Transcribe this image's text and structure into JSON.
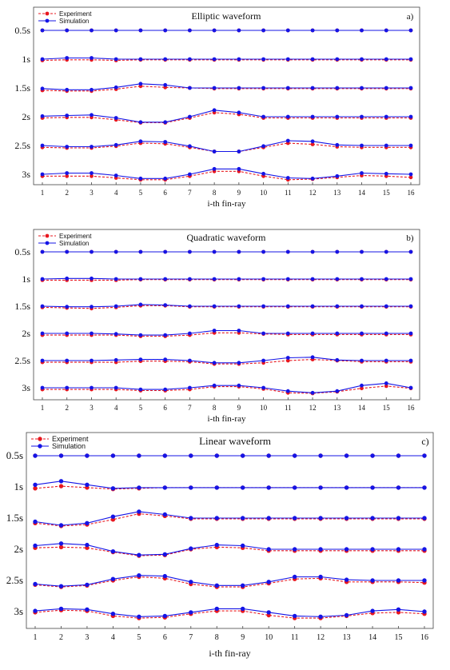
{
  "chart_data": [
    {
      "type": "line",
      "title": "Elliptic waveform",
      "panel_label": "a)",
      "xlabel": "i-th fin-ray",
      "x": [
        1,
        2,
        3,
        4,
        5,
        6,
        7,
        8,
        9,
        10,
        11,
        12,
        13,
        14,
        15,
        16
      ],
      "row_labels": [
        "0.5s",
        "1s",
        "1.5s",
        "2s",
        "2.5s",
        "3s"
      ],
      "legend": [
        "Experiment",
        "Simulation"
      ],
      "legend_position": "top-left",
      "colors": {
        "experiment": "#e8171f",
        "simulation": "#1414e6"
      },
      "grid": false,
      "series": [
        {
          "name": "Experiment",
          "rows": [
            [
              0,
              0,
              0,
              0,
              0,
              0,
              0,
              0,
              0,
              0,
              0,
              0,
              0,
              0,
              0,
              0
            ],
            [
              -0.2,
              -0.1,
              -0.1,
              -0.2,
              -0.1,
              -0.1,
              -0.1,
              -0.1,
              -0.1,
              -0.1,
              -0.1,
              -0.1,
              -0.1,
              -0.1,
              -0.1,
              -0.1
            ],
            [
              -0.4,
              -0.5,
              -0.5,
              -0.2,
              0.3,
              0.1,
              0,
              -0.1,
              -0.1,
              -0.1,
              -0.1,
              -0.1,
              -0.1,
              -0.1,
              -0.1,
              -0.1
            ],
            [
              -0.2,
              -0.1,
              -0.1,
              -0.5,
              -1,
              -1,
              -0.2,
              0.7,
              0.4,
              -0.2,
              -0.2,
              -0.2,
              -0.2,
              -0.2,
              -0.2,
              -0.2
            ],
            [
              -0.3,
              -0.4,
              -0.4,
              -0.1,
              0.4,
              0.3,
              -0.3,
              -1,
              -1,
              -0.3,
              0.4,
              0.2,
              -0.2,
              -0.3,
              -0.3,
              -0.3
            ],
            [
              -0.3,
              -0.3,
              -0.3,
              -0.6,
              -0.9,
              -0.9,
              -0.3,
              0.5,
              0.5,
              -0.3,
              -0.9,
              -0.8,
              -0.5,
              -0.2,
              -0.3,
              -0.5
            ]
          ]
        },
        {
          "name": "Simulation",
          "rows": [
            [
              0,
              0,
              0,
              0,
              0,
              0,
              0,
              0,
              0,
              0,
              0,
              0,
              0,
              0,
              0,
              0
            ],
            [
              0,
              0.2,
              0.2,
              0,
              0,
              0,
              0,
              0,
              0,
              0,
              0,
              0,
              0,
              0,
              0,
              0
            ],
            [
              -0.1,
              -0.3,
              -0.3,
              0.1,
              0.7,
              0.5,
              0,
              0,
              0,
              0,
              0,
              0,
              0,
              0,
              0,
              0
            ],
            [
              0.1,
              0.2,
              0.3,
              -0.2,
              -0.9,
              -0.9,
              0,
              1.1,
              0.7,
              0,
              0,
              0,
              0,
              0,
              0,
              0
            ],
            [
              0,
              -0.2,
              -0.2,
              0.1,
              0.7,
              0.6,
              -0.1,
              -1,
              -1,
              -0.1,
              0.8,
              0.7,
              0.1,
              0,
              0,
              0
            ],
            [
              0,
              0.2,
              0.2,
              -0.2,
              -0.7,
              -0.7,
              0,
              0.9,
              0.9,
              0.1,
              -0.6,
              -0.7,
              -0.3,
              0.2,
              0.1,
              0
            ]
          ]
        }
      ]
    },
    {
      "type": "line",
      "title": "Quadratic waveform",
      "panel_label": "b)",
      "xlabel": "i-th fin-ray",
      "x": [
        1,
        2,
        3,
        4,
        5,
        6,
        7,
        8,
        9,
        10,
        11,
        12,
        13,
        14,
        15,
        16
      ],
      "row_labels": [
        "0.5s",
        "1s",
        "1.5s",
        "2s",
        "2.5s",
        "3s"
      ],
      "legend": [
        "Experiment",
        "Simulation"
      ],
      "legend_position": "top-left",
      "colors": {
        "experiment": "#e8171f",
        "simulation": "#1414e6"
      },
      "grid": false,
      "series": [
        {
          "name": "Experiment",
          "rows": [
            [
              0,
              0,
              0,
              0,
              0,
              0,
              0,
              0,
              0,
              0,
              0,
              0,
              0,
              0,
              0,
              0
            ],
            [
              -0.2,
              -0.2,
              -0.2,
              -0.2,
              -0.1,
              -0.1,
              -0.1,
              -0.1,
              -0.1,
              -0.1,
              -0.1,
              -0.1,
              -0.1,
              -0.1,
              -0.1,
              -0.1
            ],
            [
              -0.2,
              -0.3,
              -0.4,
              -0.2,
              0.1,
              0.1,
              -0.1,
              -0.1,
              -0.1,
              -0.1,
              -0.1,
              -0.1,
              -0.1,
              -0.1,
              -0.1,
              -0.1
            ],
            [
              -0.3,
              -0.3,
              -0.3,
              -0.3,
              -0.5,
              -0.5,
              -0.3,
              0.1,
              0.1,
              -0.1,
              -0.2,
              -0.2,
              -0.2,
              -0.2,
              -0.2,
              -0.2
            ],
            [
              -0.3,
              -0.3,
              -0.3,
              -0.3,
              -0.1,
              -0.1,
              -0.2,
              -0.6,
              -0.6,
              -0.4,
              0,
              0.2,
              0,
              -0.2,
              -0.2,
              -0.2
            ],
            [
              -0.3,
              -0.3,
              -0.3,
              -0.3,
              -0.5,
              -0.5,
              -0.3,
              0.2,
              0.2,
              -0.2,
              -0.9,
              -1,
              -0.7,
              -0.1,
              0.3,
              -0.1
            ]
          ]
        },
        {
          "name": "Simulation",
          "rows": [
            [
              0,
              0,
              0,
              0,
              0,
              0,
              0,
              0,
              0,
              0,
              0,
              0,
              0,
              0,
              0,
              0
            ],
            [
              0,
              0.1,
              0.1,
              0,
              0,
              0,
              0,
              0,
              0,
              0,
              0,
              0,
              0,
              0,
              0,
              0
            ],
            [
              0,
              -0.1,
              -0.1,
              0,
              0.3,
              0.2,
              0,
              0,
              0,
              0,
              0,
              0,
              0,
              0,
              0,
              0
            ],
            [
              0,
              0,
              0,
              -0.1,
              -0.3,
              -0.3,
              0,
              0.5,
              0.5,
              0,
              0,
              0,
              0,
              0,
              0,
              0
            ],
            [
              0,
              0,
              0,
              0.1,
              0.2,
              0.2,
              0,
              -0.4,
              -0.4,
              0,
              0.5,
              0.6,
              0.1,
              0,
              0,
              0
            ],
            [
              0,
              0,
              0,
              0,
              -0.3,
              -0.3,
              0,
              0.4,
              0.4,
              0,
              -0.6,
              -0.9,
              -0.6,
              0.4,
              0.8,
              0
            ]
          ]
        }
      ]
    },
    {
      "type": "line",
      "title": "Linear waveform",
      "panel_label": "c)",
      "xlabel": "i-th fin-ray",
      "x": [
        1,
        2,
        3,
        4,
        5,
        6,
        7,
        8,
        9,
        10,
        11,
        12,
        13,
        14,
        15,
        16
      ],
      "row_labels": [
        "0.5s",
        "1s",
        "1.5s",
        "2s",
        "2.5s",
        "3s"
      ],
      "legend": [
        "Experiment",
        "Simulation"
      ],
      "legend_position": "top-left",
      "colors": {
        "experiment": "#e8171f",
        "simulation": "#1414e6"
      },
      "grid": false,
      "series": [
        {
          "name": "Experiment",
          "rows": [
            [
              0,
              0,
              0,
              0,
              0,
              0,
              0,
              0,
              0,
              0,
              0,
              0,
              0,
              0,
              0,
              0
            ],
            [
              -0.2,
              0.1,
              -0.1,
              -0.3,
              -0.2,
              -0.1,
              -0.1,
              -0.1,
              -0.1,
              -0.1,
              -0.1,
              -0.1,
              -0.1,
              -0.1,
              -0.1,
              -0.1
            ],
            [
              -0.7,
              -1.1,
              -0.9,
              -0.2,
              0.6,
              0.3,
              -0.1,
              -0.1,
              -0.1,
              -0.1,
              -0.1,
              -0.1,
              -0.1,
              -0.1,
              -0.1,
              -0.1
            ],
            [
              0.2,
              0.3,
              0.2,
              -0.4,
              -0.9,
              -0.8,
              0,
              0.3,
              0.2,
              -0.2,
              -0.2,
              -0.2,
              -0.2,
              -0.2,
              -0.2,
              -0.2
            ],
            [
              -0.6,
              -0.9,
              -0.7,
              0,
              0.5,
              0.3,
              -0.5,
              -0.9,
              -0.9,
              -0.4,
              0.2,
              0.3,
              -0.2,
              -0.2,
              -0.2,
              -0.3
            ],
            [
              -0.1,
              0.2,
              0.1,
              -0.6,
              -0.9,
              -0.8,
              -0.3,
              0.1,
              0.1,
              -0.5,
              -0.9,
              -0.9,
              -0.6,
              -0.2,
              -0.1,
              -0.3
            ]
          ]
        },
        {
          "name": "Simulation",
          "rows": [
            [
              0,
              0,
              0,
              0,
              0,
              0,
              0,
              0,
              0,
              0,
              0,
              0,
              0,
              0,
              0,
              0
            ],
            [
              0.3,
              0.8,
              0.3,
              -0.2,
              -0.1,
              -0.1,
              -0.1,
              -0.1,
              -0.1,
              -0.1,
              -0.1,
              -0.1,
              -0.1,
              -0.1,
              -0.1,
              -0.1
            ],
            [
              -0.5,
              -1,
              -0.7,
              0.2,
              0.9,
              0.5,
              0,
              0,
              0,
              0,
              0,
              0,
              0,
              0,
              0,
              0
            ],
            [
              0.5,
              0.8,
              0.6,
              -0.3,
              -0.8,
              -0.7,
              0.1,
              0.6,
              0.5,
              0,
              0,
              0,
              0,
              0,
              0,
              0
            ],
            [
              -0.5,
              -0.8,
              -0.6,
              0.2,
              0.7,
              0.6,
              -0.2,
              -0.7,
              -0.7,
              -0.2,
              0.5,
              0.5,
              0.1,
              0,
              0,
              0
            ],
            [
              0.1,
              0.4,
              0.3,
              -0.3,
              -0.7,
              -0.6,
              -0.1,
              0.4,
              0.4,
              -0.1,
              -0.6,
              -0.7,
              -0.5,
              0.1,
              0.3,
              0
            ]
          ]
        }
      ]
    }
  ]
}
